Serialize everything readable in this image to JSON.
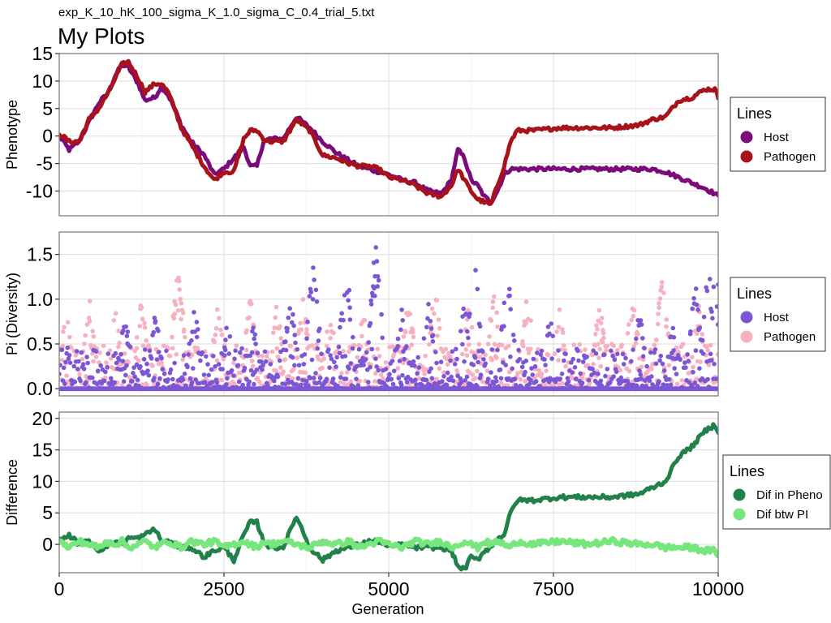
{
  "filename": "exp_K_10_hK_100_sigma_K_1.0_sigma_C_0.4_trial_5.txt",
  "title": "My Plots",
  "xlabel": "Generation",
  "x_ticks": [
    "0",
    "2500",
    "5000",
    "7500",
    "10000"
  ],
  "colors": {
    "host_pheno": "#7b0a7b",
    "pathogen_pheno": "#a8121a",
    "host_pi": "#7b57d6",
    "pathogen_pi": "#f7b0c0",
    "dif_pheno": "#22804a",
    "dif_pi": "#77e67d",
    "grid": "#e2e2e2",
    "frame": "#7f7f7f"
  },
  "chart_data": [
    {
      "type": "line",
      "ylabel": "Phenotype",
      "xlim": [
        0,
        10000
      ],
      "ylim": [
        -14.5,
        15
      ],
      "y_ticks": [
        "15",
        "10",
        "5",
        "0",
        "-5",
        "-10"
      ],
      "legend": {
        "title": "Lines",
        "position": "right"
      },
      "x": [
        0,
        150,
        300,
        450,
        600,
        750,
        850,
        950,
        1050,
        1200,
        1300,
        1450,
        1550,
        1650,
        1750,
        1850,
        2000,
        2200,
        2350,
        2500,
        2650,
        2800,
        2900,
        3000,
        3100,
        3200,
        3400,
        3600,
        3800,
        4000,
        4200,
        4400,
        4550,
        4700,
        4850,
        5000,
        5200,
        5400,
        5600,
        5800,
        5950,
        6050,
        6150,
        6250,
        6350,
        6450,
        6550,
        6650,
        6750,
        6850,
        6950,
        7200,
        7600,
        8000,
        8400,
        8800,
        9000,
        9200,
        9400,
        9600,
        9800,
        9950,
        10000
      ],
      "series": [
        {
          "name": "Host",
          "values": [
            0,
            -2.5,
            -1,
            2.5,
            6,
            8,
            11,
            13,
            12.5,
            9.5,
            6.5,
            7,
            9,
            7.5,
            5,
            2,
            -1,
            -3.5,
            -7,
            -6,
            -4,
            -2,
            -5.5,
            -5.5,
            -1,
            -0.5,
            -0.5,
            3.5,
            1.5,
            -1,
            -3,
            -4.5,
            -5.5,
            -6,
            -6.5,
            -7,
            -8,
            -8.5,
            -10,
            -10.5,
            -8,
            -2.5,
            -4,
            -8,
            -9,
            -11,
            -12,
            -10,
            -7,
            -6,
            -6,
            -6,
            -6,
            -6,
            -6,
            -6,
            -6,
            -6.5,
            -7.5,
            -8.5,
            -9.5,
            -10.5,
            -11
          ]
        },
        {
          "name": "Pathogen",
          "values": [
            0.5,
            -1,
            -1,
            3,
            5,
            8,
            10.5,
            13,
            13.5,
            10.5,
            8,
            9.5,
            9.5,
            8,
            5,
            1.5,
            -1.5,
            -5.5,
            -8,
            -6.5,
            -6.5,
            -0.5,
            1,
            1,
            -0.5,
            -1,
            -1,
            3,
            1,
            -3.5,
            -4,
            -5,
            -5.5,
            -5.5,
            -6,
            -7.5,
            -8,
            -9,
            -10.5,
            -11,
            -9,
            -6,
            -8,
            -10,
            -11.5,
            -12,
            -12.5,
            -9,
            -5.5,
            -1,
            1,
            1,
            1.5,
            1.5,
            1.5,
            2,
            3,
            3.5,
            6.5,
            7,
            8.5,
            8.5,
            7
          ]
        }
      ]
    },
    {
      "type": "scatter",
      "ylabel": "Pi (Diversity)",
      "xlim": [
        0,
        10000
      ],
      "ylim": [
        -0.08,
        1.75
      ],
      "y_ticks": [
        "1.5",
        "1.0",
        "0.5",
        "0.0"
      ],
      "legend": {
        "title": "Lines",
        "position": "right"
      },
      "series": [
        {
          "name": "Host",
          "peaks": [
            [
              120,
              0.5
            ],
            [
              600,
              0.7
            ],
            [
              1000,
              0.85
            ],
            [
              1450,
              0.9
            ],
            [
              2050,
              0.95
            ],
            [
              2550,
              0.8
            ],
            [
              2950,
              0.75
            ],
            [
              3500,
              1.1
            ],
            [
              3850,
              1.5
            ],
            [
              4350,
              1.5
            ],
            [
              4800,
              1.67
            ],
            [
              5200,
              0.95
            ],
            [
              5600,
              1.0
            ],
            [
              6150,
              1.0
            ],
            [
              6300,
              1.58
            ],
            [
              6800,
              1.45
            ],
            [
              7450,
              0.85
            ],
            [
              8000,
              0.55
            ],
            [
              8800,
              0.9
            ],
            [
              9300,
              0.75
            ],
            [
              9650,
              1.2
            ],
            [
              9850,
              1.45
            ],
            [
              9950,
              1.58
            ]
          ]
        },
        {
          "name": "Pathogen",
          "peaks": [
            [
              100,
              0.95
            ],
            [
              450,
              1.05
            ],
            [
              850,
              0.9
            ],
            [
              1250,
              1.05
            ],
            [
              1800,
              1.5
            ],
            [
              2400,
              0.95
            ],
            [
              2900,
              1.1
            ],
            [
              3300,
              1.0
            ],
            [
              3700,
              1.05
            ],
            [
              4100,
              0.95
            ],
            [
              4600,
              1.0
            ],
            [
              5300,
              1.1
            ],
            [
              5700,
              1.2
            ],
            [
              6200,
              1.05
            ],
            [
              6600,
              1.2
            ],
            [
              7100,
              1.1
            ],
            [
              7600,
              0.95
            ],
            [
              8200,
              1.0
            ],
            [
              8700,
              1.1
            ],
            [
              9150,
              1.4
            ],
            [
              9700,
              0.95
            ]
          ]
        }
      ]
    },
    {
      "type": "line",
      "ylabel": "Difference",
      "xlim": [
        0,
        10000
      ],
      "ylim": [
        -4.5,
        21
      ],
      "y_ticks": [
        "20",
        "15",
        "10",
        "5",
        "0"
      ],
      "legend": {
        "title": "Lines",
        "position": "right"
      },
      "x": [
        0,
        150,
        300,
        450,
        600,
        750,
        850,
        950,
        1050,
        1200,
        1300,
        1450,
        1550,
        1650,
        1750,
        1850,
        2000,
        2200,
        2350,
        2500,
        2650,
        2800,
        2900,
        3000,
        3100,
        3200,
        3400,
        3600,
        3800,
        4000,
        4200,
        4400,
        4550,
        4700,
        4850,
        5000,
        5200,
        5400,
        5600,
        5800,
        5950,
        6050,
        6150,
        6250,
        6350,
        6450,
        6550,
        6650,
        6750,
        6850,
        6950,
        7200,
        7600,
        8000,
        8400,
        8800,
        9000,
        9200,
        9400,
        9600,
        9800,
        9950,
        10000
      ],
      "series": [
        {
          "name": "Dif in Pheno",
          "values": [
            0.5,
            1.5,
            0,
            0.5,
            -1,
            0,
            0.5,
            0,
            1,
            1,
            1.5,
            2.5,
            0.5,
            0.5,
            0,
            -0.5,
            -0.5,
            -2,
            -1,
            -0.5,
            -2.5,
            1.5,
            3.5,
            3.5,
            0.5,
            -0.5,
            -0.5,
            4.5,
            -0.5,
            -2.5,
            -1,
            -0.5,
            0,
            0.5,
            0.5,
            -0.5,
            0,
            -0.5,
            -0.5,
            -0.5,
            -1,
            -3.5,
            -4,
            -2,
            -2.5,
            -1,
            -0.5,
            1,
            1.5,
            5,
            7,
            7,
            7.5,
            7.5,
            7.5,
            8,
            9,
            10,
            14,
            15.5,
            18,
            19,
            18
          ]
        },
        {
          "name": "Dif btw PI",
          "values": [
            0.5,
            -0.5,
            0.5,
            0,
            -0.5,
            0.5,
            0,
            0.5,
            -0.5,
            0,
            0.5,
            -0.5,
            0,
            0.5,
            0,
            -0.5,
            0.5,
            0,
            0.5,
            -0.5,
            0,
            0.5,
            0,
            -0.5,
            0.5,
            0,
            0.5,
            0,
            -0.5,
            0.5,
            0,
            0.5,
            -0.5,
            0,
            0.5,
            0,
            -0.5,
            0.5,
            0,
            0.5,
            -0.5,
            0,
            0.5,
            0,
            -0.5,
            0.5,
            0,
            0.5,
            0,
            -0.5,
            0.5,
            0,
            0.5,
            0,
            0.5,
            0,
            0,
            -0.5,
            -0.5,
            -0.5,
            -1,
            -1,
            -1.5
          ]
        }
      ]
    }
  ]
}
